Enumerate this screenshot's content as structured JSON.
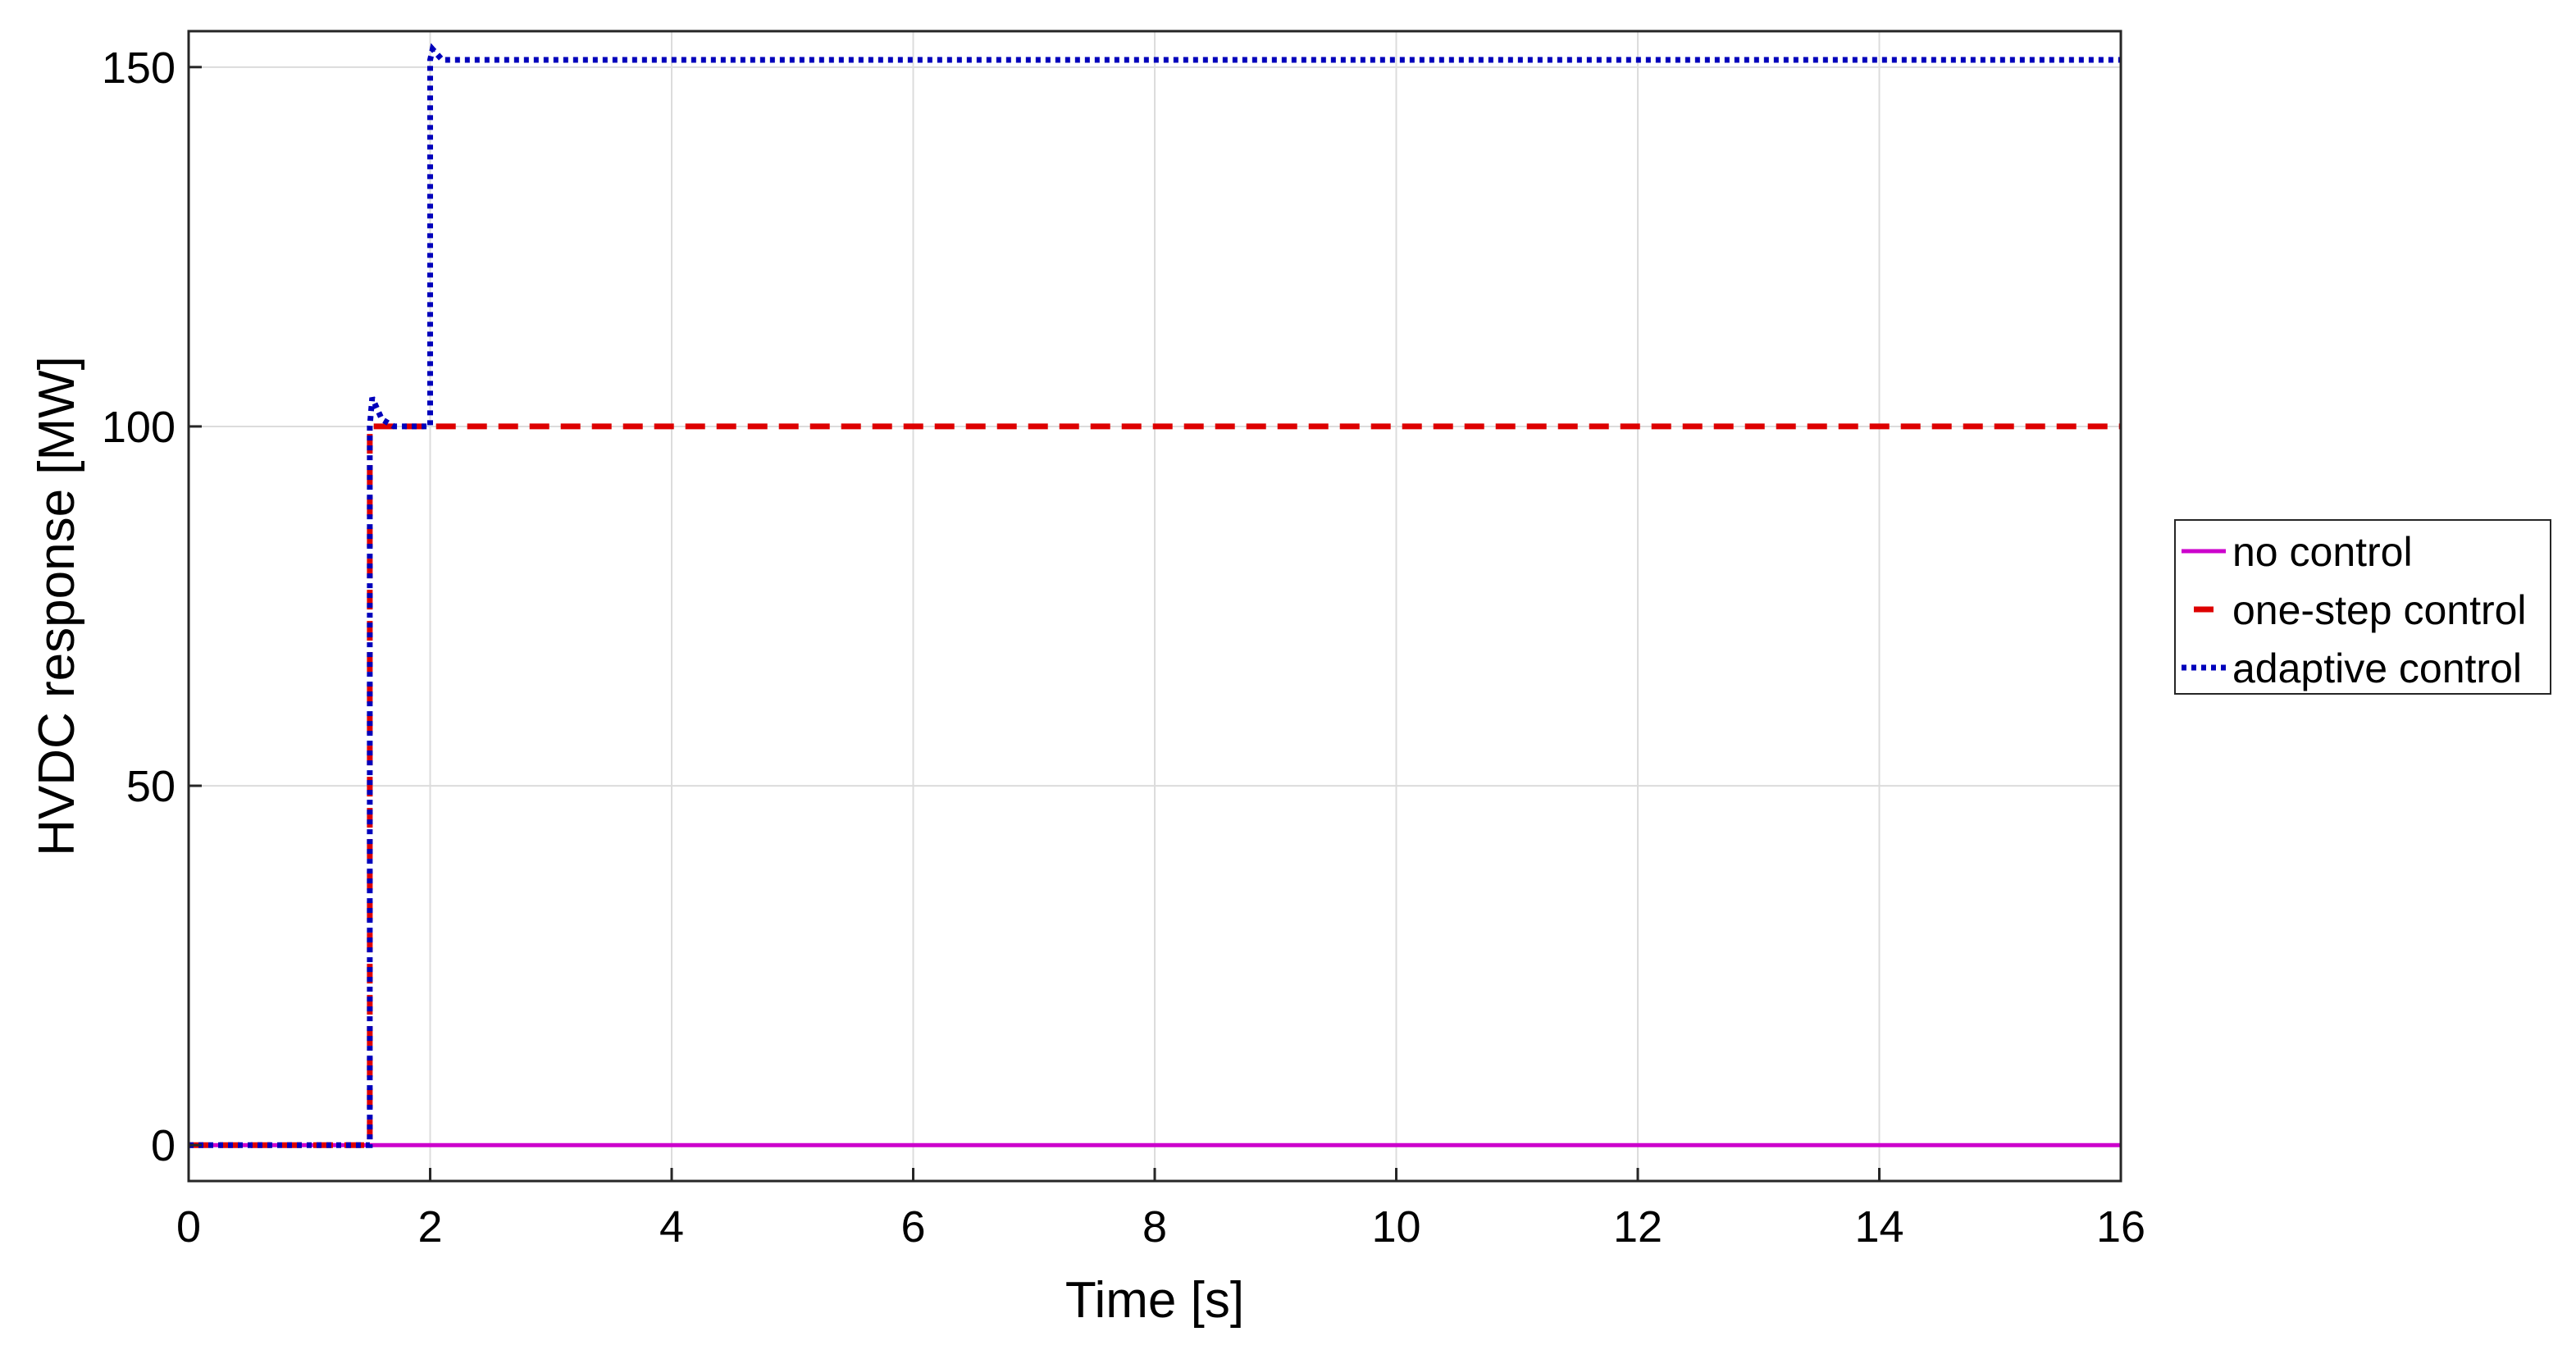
{
  "chart_data": {
    "type": "line",
    "title": "",
    "xlabel": "Time [s]",
    "ylabel": "HVDC response [MW]",
    "xlim": [
      0,
      16
    ],
    "ylim": [
      -5,
      155
    ],
    "xticks": [
      0,
      2,
      4,
      6,
      8,
      10,
      12,
      14,
      16
    ],
    "yticks": [
      0,
      50,
      100,
      150
    ],
    "grid": true,
    "legend_position": "right",
    "series": [
      {
        "name": "no control",
        "color": "#cc00cc",
        "style": "solid",
        "x": [
          0,
          16
        ],
        "y": [
          0,
          0
        ]
      },
      {
        "name": "one-step control",
        "color": "#dd0000",
        "style": "dashed",
        "x": [
          0,
          1.5,
          1.5,
          2.0,
          16
        ],
        "y": [
          0,
          0,
          100,
          100,
          100
        ]
      },
      {
        "name": "adaptive control",
        "color": "#0000bb",
        "style": "dotted",
        "x": [
          0,
          1.5,
          1.5,
          1.52,
          1.6,
          1.7,
          2.0,
          2.0,
          2.02,
          2.1,
          16
        ],
        "y": [
          0,
          0,
          100,
          104,
          101,
          100,
          100,
          151,
          152.5,
          151,
          151
        ]
      }
    ]
  }
}
